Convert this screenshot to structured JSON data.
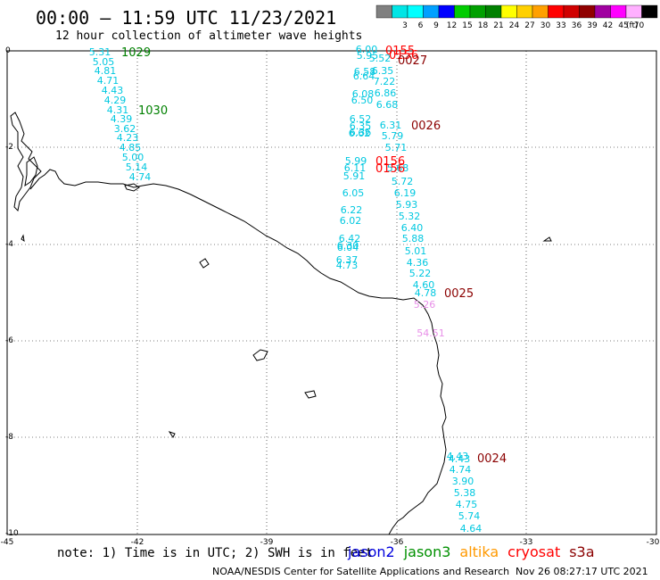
{
  "title": "00:00 – 11:59 UTC 11/23/2021",
  "subtitle": "12 hour collection of altimeter wave heights",
  "legend": {
    "unit": "(ft)",
    "bins": [
      {
        "label": "",
        "color": "#808080"
      },
      {
        "label": "3",
        "color": "#00e5e5"
      },
      {
        "label": "6",
        "color": "#00ffff"
      },
      {
        "label": "9",
        "color": "#00a0ff"
      },
      {
        "label": "12",
        "color": "#0000ff"
      },
      {
        "label": "15",
        "color": "#00cc00"
      },
      {
        "label": "18",
        "color": "#00a000"
      },
      {
        "label": "21",
        "color": "#008000"
      },
      {
        "label": "24",
        "color": "#ffff00"
      },
      {
        "label": "27",
        "color": "#ffd000"
      },
      {
        "label": "30",
        "color": "#ffa000"
      },
      {
        "label": "33",
        "color": "#ff0000"
      },
      {
        "label": "36",
        "color": "#d00000"
      },
      {
        "label": "39",
        "color": "#900000"
      },
      {
        "label": "42",
        "color": "#a000a0"
      },
      {
        "label": "45",
        "color": "#ff00ff"
      },
      {
        "label": "70",
        "color": "#ffb0ff"
      },
      {
        "label": "",
        "color": "#000000"
      }
    ]
  },
  "axes": {
    "lon_range": [
      -45,
      -30
    ],
    "lat_range": [
      -10,
      0
    ],
    "lon_ticks": [
      "-45",
      "-42",
      "-39",
      "-36",
      "-33",
      "-30"
    ],
    "lat_ticks": [
      "0",
      "-2",
      "-4",
      "-6",
      "-8",
      "-10"
    ]
  },
  "colors": {
    "cyan_obs": "#00c8e0",
    "pink_obs": "#e890e8",
    "time_red": "#ff0000",
    "time_darkred": "#8b0000",
    "time_green": "#008000"
  },
  "tracks": {
    "track_a": {
      "lon": -43.2,
      "values": [
        "5.31",
        "5.05",
        "4.81",
        "4.71",
        "4.43",
        "4.29",
        "4.31",
        "4.39",
        "3.62",
        "4.23",
        "4.85",
        "5.00",
        "5.14",
        "4.74"
      ]
    },
    "track_b": {
      "lon": -36.6,
      "values": [
        "6.00",
        "5.95",
        "6.58",
        "6.64",
        "6.08",
        "6.50",
        "6.52",
        "6.35",
        "6.36",
        "6.62",
        "5.99",
        "6.11",
        "5.91",
        "6.05",
        "6.22",
        "6.02",
        "6.42",
        "6.30",
        "6.04",
        "6.37",
        "4.73"
      ]
    },
    "track_c": {
      "lon": -35.6,
      "values": [
        "5.52",
        "6.35",
        "7.22",
        "6.86",
        "6.68",
        "6.31",
        "5.79",
        "5.71",
        "5.68",
        "5.72",
        "6.19",
        "5.93",
        "5.32",
        "6.40",
        "5.88",
        "5.01",
        "4.36",
        "5.22",
        "4.60",
        "4.78"
      ]
    },
    "track_c_pink": [
      "5.26",
      "54.51"
    ],
    "track_d": {
      "values": [
        "4.43",
        "4.43",
        "4.74",
        "3.90",
        "5.38",
        "4.75",
        "5.74",
        "4.64"
      ]
    },
    "times": [
      {
        "label": "1029",
        "kind": "green"
      },
      {
        "label": "1030",
        "kind": "green"
      },
      {
        "label": "0155",
        "kind": "red"
      },
      {
        "label": "0156",
        "kind": "red"
      },
      {
        "label": "0027",
        "kind": "darkred"
      },
      {
        "label": "0026",
        "kind": "darkred"
      },
      {
        "label": "0156",
        "kind": "red"
      },
      {
        "label": "0156",
        "kind": "red"
      },
      {
        "label": "0025",
        "kind": "darkred"
      },
      {
        "label": "0024",
        "kind": "darkred"
      }
    ]
  },
  "footer": {
    "note": "note: 1) Time is in UTC; 2) SWH is in feet",
    "satellites": [
      {
        "name": "jason2",
        "color": "#0000dd"
      },
      {
        "name": "jason3",
        "color": "#009000"
      },
      {
        "name": "altika",
        "color": "#ff9900"
      },
      {
        "name": "cryosat",
        "color": "#ff0000"
      },
      {
        "name": "s3a",
        "color": "#8b0000"
      }
    ],
    "credit": "NOAA/NESDIS Center for Satellite Applications and Research",
    "stamp": "Nov 26 08:27:17 UTC 2021"
  }
}
